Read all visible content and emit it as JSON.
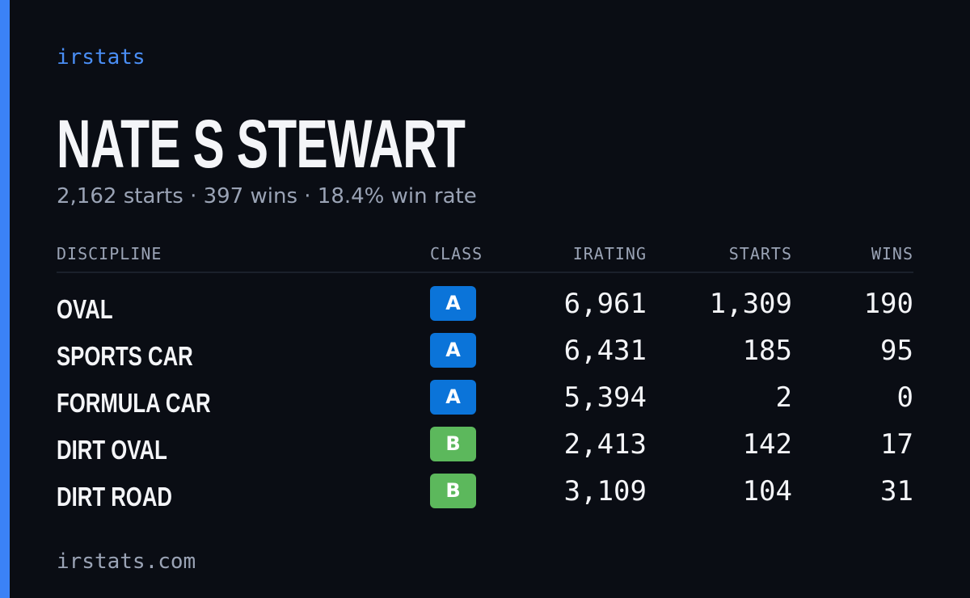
{
  "brand": "irstats",
  "driver": {
    "name": "NATE S STEWART",
    "summary": "2,162 starts · 397 wins · 18.4% win rate"
  },
  "table": {
    "header": [
      "DISCIPLINE",
      "CLASS",
      "IRATING",
      "STARTS",
      "WINS"
    ],
    "rows": [
      {
        "discipline": "OVAL",
        "class": "A",
        "class_color": "#0b74d9",
        "irating": "6,961",
        "starts": "1,309",
        "wins": "190"
      },
      {
        "discipline": "SPORTS CAR",
        "class": "A",
        "class_color": "#0b74d9",
        "irating": "6,431",
        "starts": "185",
        "wins": "95"
      },
      {
        "discipline": "FORMULA CAR",
        "class": "A",
        "class_color": "#0b74d9",
        "irating": "5,394",
        "starts": "2",
        "wins": "0"
      },
      {
        "discipline": "DIRT OVAL",
        "class": "B",
        "class_color": "#5cb85c",
        "irating": "2,413",
        "starts": "142",
        "wins": "17"
      },
      {
        "discipline": "DIRT ROAD",
        "class": "B",
        "class_color": "#5cb85c",
        "irating": "3,109",
        "starts": "104",
        "wins": "31"
      }
    ]
  },
  "footer": "irstats.com"
}
